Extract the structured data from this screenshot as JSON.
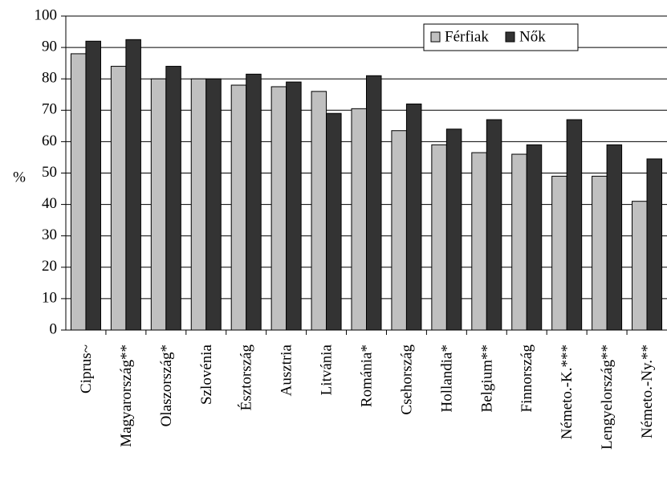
{
  "chart_data": {
    "type": "bar",
    "title": "",
    "xlabel": "",
    "ylabel": "%",
    "ylim": [
      0,
      100
    ],
    "yticks": [
      0,
      10,
      20,
      30,
      40,
      50,
      60,
      70,
      80,
      90,
      100
    ],
    "grid": true,
    "legend_position": "top-right",
    "categories": [
      "Ciprus~",
      "Magyarország**",
      "Olaszország*",
      "Szlovénia",
      "Észtország",
      "Ausztria",
      "Litvánia",
      "Románia*",
      "Csehország",
      "Hollandia*",
      "Belgium**",
      "Finnország",
      "Németo.-K.***",
      "Lengyelország**",
      "Németo.-Ny.**"
    ],
    "series": [
      {
        "name": "Férfiak",
        "color": "#c0c0c0",
        "values": [
          88,
          84,
          80,
          80,
          78,
          77.5,
          76,
          70.5,
          63.5,
          59,
          56.5,
          56,
          49,
          49,
          41
        ]
      },
      {
        "name": "Nők",
        "color": "#333333",
        "values": [
          92,
          92.5,
          84,
          80,
          81.5,
          79,
          69,
          81,
          72,
          64,
          67,
          59,
          67,
          59,
          54.5
        ]
      }
    ]
  }
}
